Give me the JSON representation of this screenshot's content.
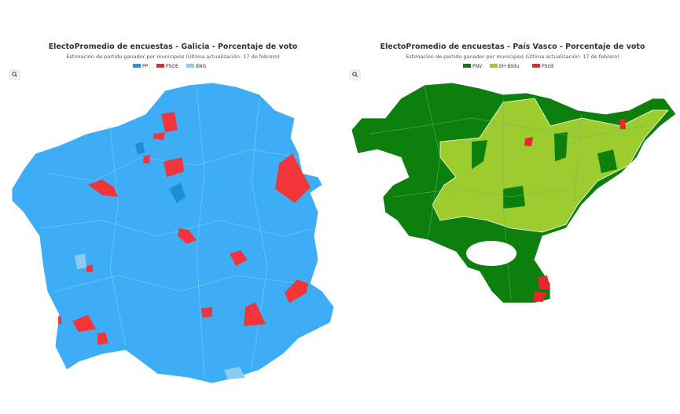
{
  "maps": [
    {
      "title": "ElectoPromedio de encuestas - Galicia - Porcentaje de voto",
      "subtitle": "Estimación de partido ganador por municipios (Última actualización: 17 de febrero)",
      "legend": [
        {
          "name": "PP",
          "color": "#1e96e0"
        },
        {
          "name": "PSOE",
          "color": "#e8262e"
        },
        {
          "name": "BNG",
          "color": "#8ccbf2"
        }
      ]
    },
    {
      "title": "ElectoPromedio de encuestas - País Vasco - Porcentaje de voto",
      "subtitle": "Estimación de partido ganador por municipios (Última actualización: 17 de febrero)",
      "legend": [
        {
          "name": "PNV",
          "color": "#0b7a0b"
        },
        {
          "name": "EH Bildu",
          "color": "#9ccc2e"
        },
        {
          "name": "PSOE",
          "color": "#e8262e"
        }
      ]
    }
  ]
}
